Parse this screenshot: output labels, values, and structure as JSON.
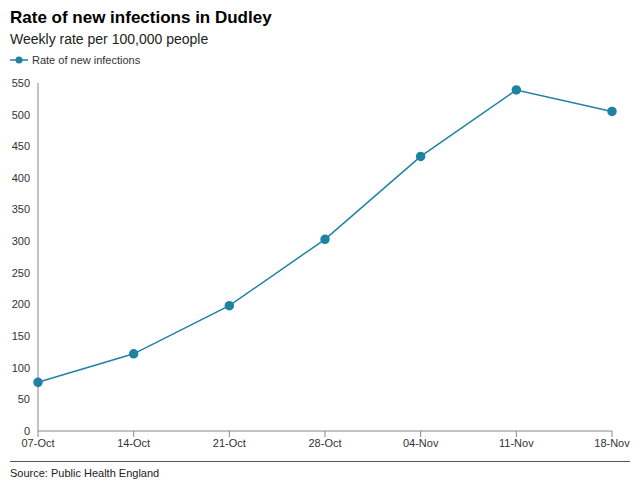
{
  "chart_data": {
    "type": "line",
    "title": "Rate of new infections in Dudley",
    "subtitle": "Weekly rate per 100,000 people",
    "source": "Source: Public Health England",
    "categories": [
      "07-Oct",
      "14-Oct",
      "21-Oct",
      "28-Oct",
      "04-Nov",
      "11-Nov",
      "18-Nov"
    ],
    "series": [
      {
        "name": "Rate of new infections",
        "color": "#1f82a3",
        "marker": "circle",
        "values": [
          77,
          122,
          198,
          303,
          434,
          539,
          505
        ]
      }
    ],
    "ylim": [
      0,
      550
    ],
    "yticks": [
      0,
      50,
      100,
      150,
      200,
      250,
      300,
      350,
      400,
      450,
      500,
      550
    ],
    "grid": false,
    "legend": "top-left"
  }
}
